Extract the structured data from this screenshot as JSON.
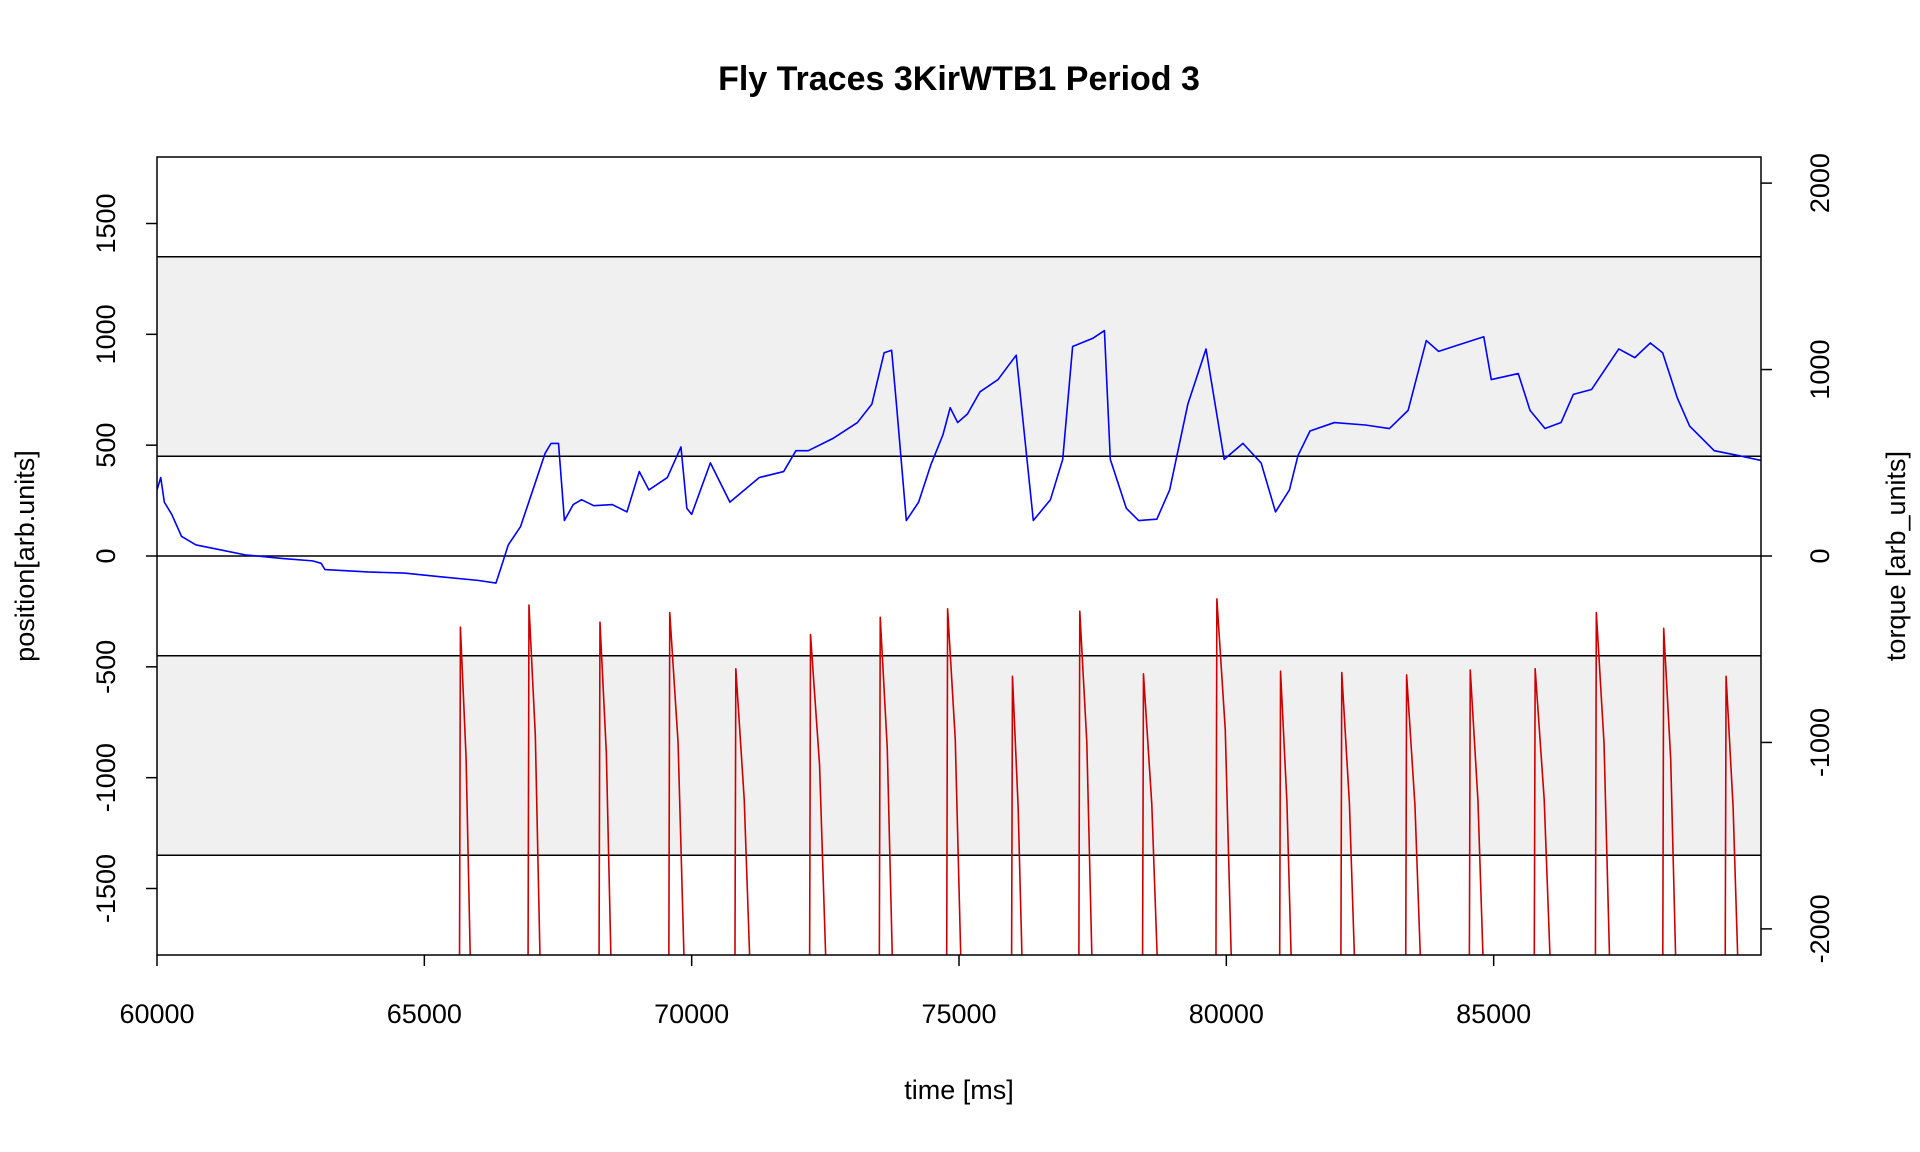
{
  "chart_data": {
    "type": "line",
    "title": "Fly Traces 3KirWTB1 Period 3",
    "x_label": "time [ms]",
    "y_label": "position[arb.units]",
    "y2_label": "torque [arb_units]",
    "xlim": [
      60000,
      90000
    ],
    "xticks": [
      60000,
      65000,
      70000,
      75000,
      80000,
      85000
    ],
    "ylim": [
      -1800,
      1800
    ],
    "yticks": [
      -1500,
      -1000,
      -500,
      0,
      500,
      1000,
      1500
    ],
    "y2lim": [
      -2140,
      2140
    ],
    "y2ticks": [
      -2000,
      -1000,
      0,
      1000,
      2000
    ],
    "hlines": [
      1350,
      450,
      0,
      -450,
      -1350
    ],
    "bands": [
      [
        450,
        1350
      ],
      [
        -1350,
        -450
      ]
    ],
    "band_color": "#f0f0f0",
    "series": [
      {
        "name": "position",
        "color": "#0000ff",
        "x": [
          60000,
          60070,
          60137,
          60275,
          60460,
          60730,
          61080,
          61650,
          62335,
          62910,
          63070,
          63140,
          63940,
          64625,
          65310,
          66000,
          66340,
          66460,
          66570,
          66800,
          67030,
          67260,
          67370,
          67510,
          67620,
          67785,
          67940,
          68170,
          68515,
          68790,
          69020,
          69200,
          69545,
          69800,
          69910,
          70000,
          70350,
          70715,
          71265,
          71720,
          71950,
          72180,
          72640,
          73100,
          73370,
          73600,
          73740,
          73830,
          74015,
          74245,
          74470,
          74700,
          74835,
          74975,
          75160,
          75390,
          75730,
          76070,
          76390,
          76710,
          76940,
          77125,
          77510,
          77720,
          77830,
          78130,
          78360,
          78700,
          78940,
          79280,
          79620,
          79960,
          80310,
          80650,
          80920,
          81180,
          81340,
          81565,
          82020,
          82600,
          83050,
          83400,
          83740,
          83970,
          84315,
          84815,
          84955,
          85460,
          85680,
          85960,
          86260,
          86490,
          86830,
          87340,
          87640,
          87930,
          88160,
          88435,
          88665,
          89125,
          89580,
          90000
        ],
        "values": [
          298,
          354,
          243,
          188,
          88,
          50,
          33,
          5,
          -11,
          -22,
          -33,
          -61,
          -72,
          -77,
          -94,
          -110,
          -122,
          -33,
          50,
          133,
          298,
          464,
          508,
          508,
          160,
          232,
          254,
          227,
          232,
          199,
          381,
          298,
          354,
          492,
          215,
          188,
          420,
          243,
          354,
          381,
          475,
          475,
          530,
          602,
          685,
          917,
          928,
          685,
          160,
          243,
          409,
          547,
          669,
          602,
          641,
          740,
          796,
          906,
          160,
          254,
          436,
          945,
          983,
          1017,
          436,
          215,
          160,
          166,
          298,
          685,
          934,
          436,
          508,
          420,
          199,
          298,
          453,
          564,
          602,
          591,
          575,
          657,
          972,
          923,
          950,
          989,
          796,
          823,
          657,
          575,
          602,
          729,
          751,
          934,
          895,
          961,
          917,
          713,
          586,
          475,
          453,
          431
        ]
      },
      {
        "name": "torque",
        "color": "#cc0000",
        "axis": "y2",
        "x": [
          65655,
          65675,
          65781,
          65884,
          66937,
          66957,
          67076,
          67189,
          68265,
          68285,
          68404,
          68517,
          69570,
          69590,
          69746,
          69890,
          70806,
          70826,
          70983,
          71127,
          72203,
          72223,
          72392,
          72546,
          73507,
          73527,
          73658,
          73782,
          74767,
          74787,
          74930,
          75064,
          75980,
          76000,
          76106,
          76209,
          77239,
          77259,
          77390,
          77514,
          78430,
          78450,
          78606,
          78750,
          79803,
          79823,
          79980,
          80124,
          80994,
          81014,
          81133,
          81246,
          82139,
          82159,
          82302,
          82436,
          83352,
          83372,
          83528,
          83672,
          84542,
          84562,
          84706,
          84840,
          85756,
          85776,
          85945,
          86099,
          86900,
          86920,
          87064,
          87198,
          88160,
          88180,
          88311,
          88434,
          89327,
          89347,
          89478,
          89602
        ],
        "values": [
          -2500,
          -382,
          -1082,
          -2500,
          -2500,
          -263,
          -963,
          -2500,
          -2500,
          -355,
          -1055,
          -2500,
          -2500,
          -303,
          -1003,
          -2500,
          -2500,
          -605,
          -1305,
          -2500,
          -2500,
          -421,
          -1121,
          -2500,
          -2500,
          -329,
          -1029,
          -2500,
          -2500,
          -283,
          -983,
          -2500,
          -2500,
          -645,
          -1345,
          -2500,
          -2500,
          -296,
          -996,
          -2500,
          -2500,
          -632,
          -1332,
          -2500,
          -2500,
          -230,
          -930,
          -2500,
          -2500,
          -618,
          -1318,
          -2500,
          -2500,
          -625,
          -1325,
          -2500,
          -2500,
          -638,
          -1338,
          -2500,
          -2500,
          -612,
          -1312,
          -2500,
          -2500,
          -605,
          -1305,
          -2500,
          -2500,
          -303,
          -1003,
          -2500,
          -2500,
          -388,
          -1088,
          -2500,
          -2500,
          -645,
          -1345,
          -2500
        ]
      }
    ]
  }
}
